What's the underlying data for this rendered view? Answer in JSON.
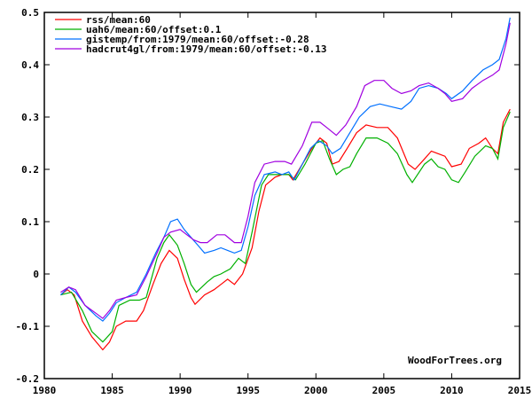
{
  "chart_data": {
    "type": "line",
    "title": "",
    "xlabel": "",
    "ylabel": "",
    "xlim": [
      1980,
      2015
    ],
    "ylim": [
      -0.2,
      0.5
    ],
    "grid": false,
    "legend_position": "top-left",
    "x_ticks": [
      "1980",
      "1985",
      "1990",
      "1995",
      "2000",
      "2005",
      "2010",
      "2015"
    ],
    "y_ticks": [
      "0.5",
      "0.4",
      "0.3",
      "0.2",
      "0.1",
      "0",
      "-0.1",
      "-0.2"
    ],
    "watermark": "WoodForTrees.org",
    "series": [
      {
        "name": "rss/mean:60",
        "color": "#ff0000",
        "x": [
          1981.2,
          1981.7,
          1982.2,
          1982.8,
          1983.5,
          1984.3,
          1984.8,
          1985.3,
          1986,
          1986.8,
          1987.3,
          1988,
          1988.6,
          1989.2,
          1989.8,
          1990.3,
          1990.8,
          1991.1,
          1991.8,
          1992.5,
          1993,
          1993.5,
          1994,
          1994.6,
          1995.3,
          1995.8,
          1996.3,
          1997,
          1997.5,
          1998,
          1998.3,
          1999,
          1999.7,
          2000.3,
          2000.8,
          2001.2,
          2001.7,
          2002.3,
          2003,
          2003.7,
          2004.5,
          2005.3,
          2006,
          2006.8,
          2007.3,
          2008,
          2008.5,
          2009,
          2009.5,
          2010,
          2010.7,
          2011.3,
          2012,
          2012.5,
          2013,
          2013.4,
          2013.8,
          2014.3
        ],
        "y": [
          -0.04,
          -0.03,
          -0.04,
          -0.09,
          -0.12,
          -0.145,
          -0.13,
          -0.1,
          -0.09,
          -0.09,
          -0.07,
          -0.02,
          0.02,
          0.045,
          0.03,
          -0.01,
          -0.045,
          -0.058,
          -0.04,
          -0.03,
          -0.02,
          -0.01,
          -0.02,
          0.0,
          0.05,
          0.12,
          0.17,
          0.185,
          0.19,
          0.19,
          0.18,
          0.21,
          0.24,
          0.26,
          0.25,
          0.21,
          0.215,
          0.24,
          0.27,
          0.285,
          0.28,
          0.28,
          0.26,
          0.21,
          0.2,
          0.22,
          0.235,
          0.23,
          0.225,
          0.205,
          0.21,
          0.24,
          0.25,
          0.26,
          0.24,
          0.23,
          0.29,
          0.315
        ]
      },
      {
        "name": "uah6/mean:60/offset:0.1",
        "color": "#00b000",
        "x": [
          1981.2,
          1982,
          1982.8,
          1983.5,
          1984.3,
          1985,
          1985.5,
          1986.3,
          1987,
          1987.5,
          1988.3,
          1988.8,
          1989.2,
          1989.8,
          1990.3,
          1990.8,
          1991.2,
          1992,
          1992.5,
          1993,
          1993.7,
          1994.3,
          1994.8,
          1995.3,
          1996,
          1996.5,
          1997.3,
          1998,
          1998.5,
          1999.2,
          2000,
          2000.5,
          2001,
          2001.5,
          2002,
          2002.5,
          2003,
          2003.7,
          2004.5,
          2005.3,
          2006,
          2006.7,
          2007.1,
          2008,
          2008.5,
          2009,
          2009.5,
          2010,
          2010.5,
          2011,
          2011.7,
          2012.5,
          2013,
          2013.4,
          2013.8,
          2014.3
        ],
        "y": [
          -0.04,
          -0.035,
          -0.07,
          -0.11,
          -0.13,
          -0.11,
          -0.06,
          -0.05,
          -0.05,
          -0.045,
          0.03,
          0.06,
          0.075,
          0.055,
          0.02,
          -0.02,
          -0.035,
          -0.015,
          -0.005,
          0.0,
          0.01,
          0.03,
          0.02,
          0.08,
          0.17,
          0.19,
          0.19,
          0.19,
          0.18,
          0.21,
          0.25,
          0.255,
          0.22,
          0.19,
          0.2,
          0.205,
          0.23,
          0.26,
          0.26,
          0.25,
          0.23,
          0.19,
          0.175,
          0.21,
          0.22,
          0.205,
          0.2,
          0.18,
          0.175,
          0.195,
          0.225,
          0.245,
          0.24,
          0.22,
          0.28,
          0.31
        ]
      },
      {
        "name": "gistemp/from:1979/mean:60/offset:-0.28",
        "color": "#0070ff",
        "x": [
          1981.2,
          1981.8,
          1982.3,
          1983,
          1983.8,
          1984.3,
          1984.8,
          1985.3,
          1986,
          1986.8,
          1987.5,
          1988.2,
          1988.8,
          1989.3,
          1989.8,
          1990.3,
          1990.8,
          1991.3,
          1991.8,
          1992.5,
          1993,
          1993.5,
          1994,
          1994.5,
          1995,
          1995.5,
          1996.2,
          1997,
          1997.5,
          1998,
          1998.4,
          1999,
          1999.6,
          2000.2,
          2000.8,
          2001.2,
          2001.8,
          2002.5,
          2003.2,
          2004,
          2004.7,
          2005.5,
          2006.3,
          2007,
          2007.6,
          2008.3,
          2009,
          2009.6,
          2010,
          2010.8,
          2011.5,
          2012.3,
          2013,
          2013.5,
          2014,
          2014.3
        ],
        "y": [
          -0.04,
          -0.025,
          -0.035,
          -0.06,
          -0.08,
          -0.09,
          -0.075,
          -0.055,
          -0.045,
          -0.035,
          0.0,
          0.04,
          0.07,
          0.1,
          0.105,
          0.085,
          0.07,
          0.055,
          0.04,
          0.045,
          0.05,
          0.045,
          0.04,
          0.045,
          0.09,
          0.15,
          0.19,
          0.195,
          0.19,
          0.195,
          0.18,
          0.21,
          0.24,
          0.255,
          0.245,
          0.23,
          0.24,
          0.27,
          0.3,
          0.32,
          0.325,
          0.32,
          0.315,
          0.33,
          0.355,
          0.36,
          0.355,
          0.345,
          0.335,
          0.35,
          0.37,
          0.39,
          0.4,
          0.41,
          0.45,
          0.49
        ]
      },
      {
        "name": "hadcrut4gl/from:1979/mean:60/offset:-0.13",
        "color": "#a000e0",
        "x": [
          1981.2,
          1981.8,
          1982.3,
          1983,
          1983.8,
          1984.3,
          1984.8,
          1985.3,
          1986,
          1986.8,
          1987.5,
          1988.3,
          1988.8,
          1989.3,
          1990,
          1990.5,
          1991,
          1991.5,
          1992,
          1992.7,
          1993.3,
          1994,
          1994.5,
          1995,
          1995.5,
          1996.2,
          1997,
          1997.7,
          1998.2,
          1999,
          1999.7,
          2000.3,
          2000.8,
          2001.5,
          2002.2,
          2003,
          2003.6,
          2004.3,
          2005,
          2005.6,
          2006.3,
          2007,
          2007.6,
          2008.3,
          2009,
          2009.5,
          2010,
          2010.8,
          2011.5,
          2012.3,
          2013,
          2013.5,
          2014,
          2014.3
        ],
        "y": [
          -0.035,
          -0.025,
          -0.03,
          -0.06,
          -0.075,
          -0.085,
          -0.07,
          -0.05,
          -0.045,
          -0.04,
          -0.005,
          0.04,
          0.07,
          0.08,
          0.085,
          0.075,
          0.065,
          0.06,
          0.06,
          0.075,
          0.075,
          0.06,
          0.06,
          0.11,
          0.175,
          0.21,
          0.215,
          0.215,
          0.21,
          0.245,
          0.29,
          0.29,
          0.28,
          0.265,
          0.285,
          0.32,
          0.36,
          0.37,
          0.37,
          0.355,
          0.345,
          0.35,
          0.36,
          0.365,
          0.355,
          0.345,
          0.33,
          0.335,
          0.355,
          0.37,
          0.38,
          0.39,
          0.44,
          0.48
        ]
      }
    ]
  }
}
